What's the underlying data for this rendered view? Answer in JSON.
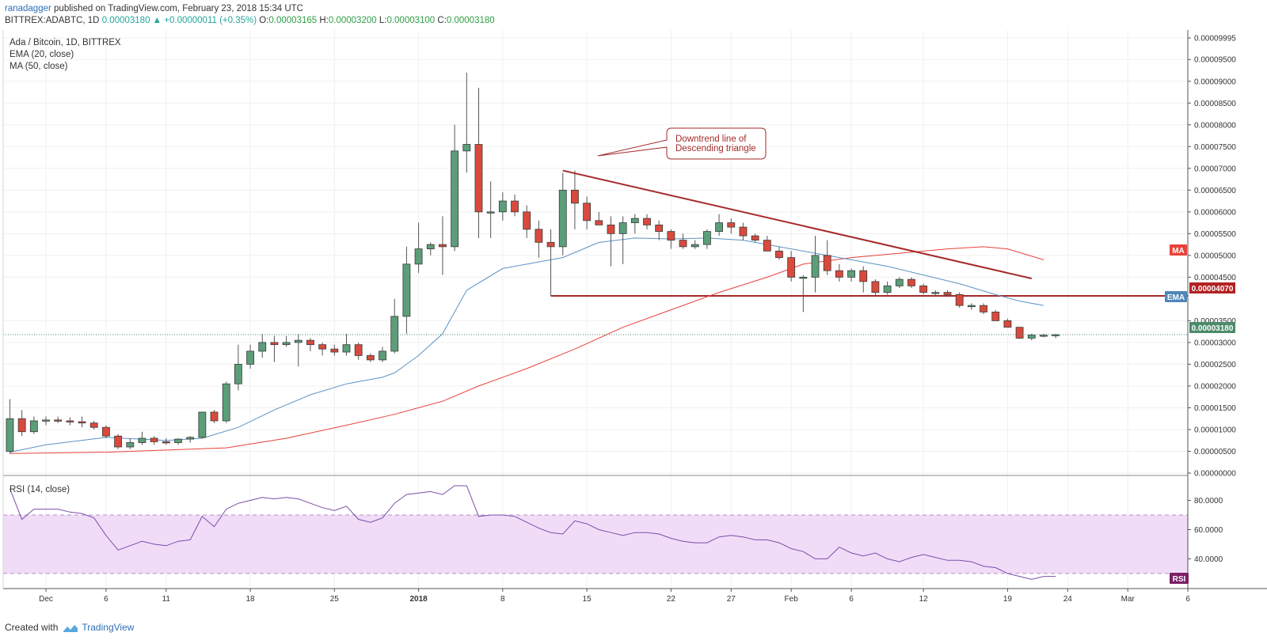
{
  "header": {
    "user": "ranadagger",
    "published": "published on TradingView.com, February 23, 2018 15:34 UTC",
    "symbol": "BITTREX:ADABTC, 1D",
    "price": "0.00003180",
    "change": "+0.00000011 (+0.35%)",
    "o_label": "O:",
    "o_value": "0.00003165",
    "h_label": "H:",
    "h_value": "0.00003200",
    "l_label": "L:",
    "l_value": "0.00003100",
    "c_label": "C:",
    "c_value": "0.00003180"
  },
  "legend": {
    "title": "Ada / Bitcoin, 1D, BITTREX",
    "ema": "EMA (20, close)",
    "ma": "MA (50, close)",
    "rsi": "RSI (14, close)"
  },
  "annotation": {
    "line1": "Downtrend line of",
    "line2": "Descending triangle"
  },
  "price_labels": {
    "ma": "MA",
    "ema": "EMA",
    "support": "0.00004070",
    "last": "0.00003180",
    "rsi": "RSI"
  },
  "footer": {
    "created_with": "Created with",
    "brand": "TradingView"
  },
  "colors": {
    "up": "#5b9e7a",
    "down": "#d94a3d",
    "ema": "#5b93c7",
    "ma": "#e8423a",
    "trendline": "#a52a2a",
    "rsi": "#7b4ea7",
    "rsi_band": "#f1dcf8",
    "last_price": "#4c8b6b"
  },
  "chart_data": {
    "type": "candlestick",
    "title": "Ada / Bitcoin, 1D, BITTREX",
    "y_ticks": [
      "0.00000000",
      "0.00000500",
      "0.00001000",
      "0.00001500",
      "0.00002000",
      "0.00002500",
      "0.00003000",
      "0.00003500",
      "0.00004500",
      "0.00005000",
      "0.00005500",
      "0.00006000",
      "0.00006500",
      "0.00007000",
      "0.00007500",
      "0.00008000",
      "0.00008500",
      "0.00009000",
      "0.00009500",
      "0.00009995"
    ],
    "ylim": [
      0,
      9.995e-05
    ],
    "x_ticks": [
      "Dec",
      "6",
      "11",
      "18",
      "25",
      "2018",
      "8",
      "15",
      "22",
      "27",
      "Feb",
      "6",
      "12",
      "19",
      "24",
      "Mar",
      "6"
    ],
    "x_tick_days": [
      0,
      5,
      10,
      17,
      24,
      31,
      38,
      45,
      52,
      57,
      62,
      67,
      73,
      80,
      85,
      90,
      95
    ],
    "day0": "2017-12-01",
    "candles": [
      {
        "d": -3,
        "o": 5e-06,
        "h": 1.7e-05,
        "l": 4.5e-06,
        "c": 1.25e-05
      },
      {
        "d": -2,
        "o": 1.25e-05,
        "h": 1.45e-05,
        "l": 8.5e-06,
        "c": 9.5e-06
      },
      {
        "d": -1,
        "o": 9.5e-06,
        "h": 1.3e-05,
        "l": 9e-06,
        "c": 1.2e-05
      },
      {
        "d": 0,
        "o": 1.2e-05,
        "h": 1.3e-05,
        "l": 1.1e-05,
        "c": 1.22e-05
      },
      {
        "d": 1,
        "o": 1.22e-05,
        "h": 1.3e-05,
        "l": 1.15e-05,
        "c": 1.2e-05
      },
      {
        "d": 2,
        "o": 1.2e-05,
        "h": 1.28e-05,
        "l": 1.1e-05,
        "c": 1.18e-05
      },
      {
        "d": 3,
        "o": 1.18e-05,
        "h": 1.3e-05,
        "l": 1.05e-05,
        "c": 1.15e-05
      },
      {
        "d": 4,
        "o": 1.15e-05,
        "h": 1.2e-05,
        "l": 1e-05,
        "c": 1.05e-05
      },
      {
        "d": 5,
        "o": 1.05e-05,
        "h": 1.1e-05,
        "l": 8e-06,
        "c": 8.5e-06
      },
      {
        "d": 6,
        "o": 8.5e-06,
        "h": 9e-06,
        "l": 5.5e-06,
        "c": 6e-06
      },
      {
        "d": 7,
        "o": 6e-06,
        "h": 8e-06,
        "l": 5.5e-06,
        "c": 7e-06
      },
      {
        "d": 8,
        "o": 7e-06,
        "h": 9.5e-06,
        "l": 6.5e-06,
        "c": 8e-06
      },
      {
        "d": 9,
        "o": 8e-06,
        "h": 8.5e-06,
        "l": 6.5e-06,
        "c": 7.2e-06
      },
      {
        "d": 10,
        "o": 7.2e-06,
        "h": 8e-06,
        "l": 6.5e-06,
        "c": 7e-06
      },
      {
        "d": 11,
        "o": 7e-06,
        "h": 8e-06,
        "l": 6.5e-06,
        "c": 7.8e-06
      },
      {
        "d": 12,
        "o": 7.8e-06,
        "h": 8.5e-06,
        "l": 7e-06,
        "c": 8.2e-06
      },
      {
        "d": 13,
        "o": 8.2e-06,
        "h": 1.4e-05,
        "l": 8e-06,
        "c": 1.4e-05
      },
      {
        "d": 14,
        "o": 1.4e-05,
        "h": 1.45e-05,
        "l": 1.15e-05,
        "c": 1.2e-05
      },
      {
        "d": 15,
        "o": 1.2e-05,
        "h": 2.1e-05,
        "l": 1.15e-05,
        "c": 2.05e-05
      },
      {
        "d": 16,
        "o": 2.05e-05,
        "h": 2.95e-05,
        "l": 1.9e-05,
        "c": 2.5e-05
      },
      {
        "d": 17,
        "o": 2.5e-05,
        "h": 2.95e-05,
        "l": 2.4e-05,
        "c": 2.8e-05
      },
      {
        "d": 18,
        "o": 2.8e-05,
        "h": 3.2e-05,
        "l": 2.65e-05,
        "c": 3e-05
      },
      {
        "d": 19,
        "o": 3e-05,
        "h": 3.15e-05,
        "l": 2.55e-05,
        "c": 2.95e-05
      },
      {
        "d": 20,
        "o": 2.95e-05,
        "h": 3.15e-05,
        "l": 2.9e-05,
        "c": 3e-05
      },
      {
        "d": 21,
        "o": 3e-05,
        "h": 3.2e-05,
        "l": 2.45e-05,
        "c": 3.05e-05
      },
      {
        "d": 22,
        "o": 3.05e-05,
        "h": 3.1e-05,
        "l": 2.8e-05,
        "c": 2.95e-05
      },
      {
        "d": 23,
        "o": 2.95e-05,
        "h": 3e-05,
        "l": 2.7e-05,
        "c": 2.85e-05
      },
      {
        "d": 24,
        "o": 2.85e-05,
        "h": 2.95e-05,
        "l": 2.7e-05,
        "c": 2.78e-05
      },
      {
        "d": 25,
        "o": 2.78e-05,
        "h": 3.2e-05,
        "l": 2.7e-05,
        "c": 2.95e-05
      },
      {
        "d": 26,
        "o": 2.95e-05,
        "h": 3e-05,
        "l": 2.6e-05,
        "c": 2.7e-05
      },
      {
        "d": 27,
        "o": 2.7e-05,
        "h": 2.75e-05,
        "l": 2.55e-05,
        "c": 2.6e-05
      },
      {
        "d": 28,
        "o": 2.6e-05,
        "h": 2.9e-05,
        "l": 2.55e-05,
        "c": 2.8e-05
      },
      {
        "d": 29,
        "o": 2.8e-05,
        "h": 4e-05,
        "l": 2.75e-05,
        "c": 3.6e-05
      },
      {
        "d": 30,
        "o": 3.6e-05,
        "h": 5.2e-05,
        "l": 3.2e-05,
        "c": 4.8e-05
      },
      {
        "d": 31,
        "o": 4.8e-05,
        "h": 5.75e-05,
        "l": 4.6e-05,
        "c": 5.15e-05
      },
      {
        "d": 32,
        "o": 5.15e-05,
        "h": 5.3e-05,
        "l": 5e-05,
        "c": 5.25e-05
      },
      {
        "d": 33,
        "o": 5.25e-05,
        "h": 5.9e-05,
        "l": 4.55e-05,
        "c": 5.2e-05
      },
      {
        "d": 34,
        "o": 5.2e-05,
        "h": 8e-05,
        "l": 5.1e-05,
        "c": 7.4e-05
      },
      {
        "d": 35,
        "o": 7.4e-05,
        "h": 9.2e-05,
        "l": 6.9e-05,
        "c": 7.55e-05
      },
      {
        "d": 36,
        "o": 7.55e-05,
        "h": 8.85e-05,
        "l": 5.4e-05,
        "c": 6e-05
      },
      {
        "d": 37,
        "o": 6e-05,
        "h": 6.7e-05,
        "l": 5.4e-05,
        "c": 6e-05
      },
      {
        "d": 38,
        "o": 6e-05,
        "h": 6.45e-05,
        "l": 5.8e-05,
        "c": 6.25e-05
      },
      {
        "d": 39,
        "o": 6.25e-05,
        "h": 6.4e-05,
        "l": 5.9e-05,
        "c": 6e-05
      },
      {
        "d": 40,
        "o": 6e-05,
        "h": 6.15e-05,
        "l": 5.4e-05,
        "c": 5.6e-05
      },
      {
        "d": 41,
        "o": 5.6e-05,
        "h": 5.8e-05,
        "l": 4.95e-05,
        "c": 5.3e-05
      },
      {
        "d": 42,
        "o": 5.3e-05,
        "h": 5.6e-05,
        "l": 4.07e-05,
        "c": 5.2e-05
      },
      {
        "d": 43,
        "o": 5.2e-05,
        "h": 6.9e-05,
        "l": 5e-05,
        "c": 6.5e-05
      },
      {
        "d": 44,
        "o": 6.5e-05,
        "h": 6.95e-05,
        "l": 5.6e-05,
        "c": 6.2e-05
      },
      {
        "d": 45,
        "o": 6.2e-05,
        "h": 6.35e-05,
        "l": 5.6e-05,
        "c": 5.8e-05
      },
      {
        "d": 46,
        "o": 5.8e-05,
        "h": 6e-05,
        "l": 5.7e-05,
        "c": 5.7e-05
      },
      {
        "d": 47,
        "o": 5.7e-05,
        "h": 5.9e-05,
        "l": 4.75e-05,
        "c": 5.5e-05
      },
      {
        "d": 48,
        "o": 5.5e-05,
        "h": 5.9e-05,
        "l": 4.8e-05,
        "c": 5.75e-05
      },
      {
        "d": 49,
        "o": 5.75e-05,
        "h": 5.95e-05,
        "l": 5.5e-05,
        "c": 5.85e-05
      },
      {
        "d": 50,
        "o": 5.85e-05,
        "h": 5.95e-05,
        "l": 5.6e-05,
        "c": 5.7e-05
      },
      {
        "d": 51,
        "o": 5.7e-05,
        "h": 5.8e-05,
        "l": 5.35e-05,
        "c": 5.55e-05
      },
      {
        "d": 52,
        "o": 5.55e-05,
        "h": 5.6e-05,
        "l": 5.15e-05,
        "c": 5.35e-05
      },
      {
        "d": 53,
        "o": 5.35e-05,
        "h": 5.5e-05,
        "l": 5.15e-05,
        "c": 5.2e-05
      },
      {
        "d": 54,
        "o": 5.2e-05,
        "h": 5.35e-05,
        "l": 5.15e-05,
        "c": 5.25e-05
      },
      {
        "d": 55,
        "o": 5.25e-05,
        "h": 5.6e-05,
        "l": 5.15e-05,
        "c": 5.55e-05
      },
      {
        "d": 56,
        "o": 5.55e-05,
        "h": 5.95e-05,
        "l": 5.45e-05,
        "c": 5.75e-05
      },
      {
        "d": 57,
        "o": 5.75e-05,
        "h": 5.85e-05,
        "l": 5.5e-05,
        "c": 5.65e-05
      },
      {
        "d": 58,
        "o": 5.65e-05,
        "h": 5.75e-05,
        "l": 5.35e-05,
        "c": 5.45e-05
      },
      {
        "d": 59,
        "o": 5.45e-05,
        "h": 5.5e-05,
        "l": 5.3e-05,
        "c": 5.35e-05
      },
      {
        "d": 60,
        "o": 5.35e-05,
        "h": 5.45e-05,
        "l": 5.1e-05,
        "c": 5.1e-05
      },
      {
        "d": 61,
        "o": 5.1e-05,
        "h": 5.2e-05,
        "l": 4.9e-05,
        "c": 4.95e-05
      },
      {
        "d": 62,
        "o": 4.95e-05,
        "h": 5.1e-05,
        "l": 4.4e-05,
        "c": 4.5e-05
      },
      {
        "d": 63,
        "o": 4.5e-05,
        "h": 4.55e-05,
        "l": 3.7e-05,
        "c": 4.5e-05
      },
      {
        "d": 64,
        "o": 4.5e-05,
        "h": 5.45e-05,
        "l": 4.15e-05,
        "c": 5e-05
      },
      {
        "d": 65,
        "o": 5e-05,
        "h": 5.35e-05,
        "l": 4.55e-05,
        "c": 4.65e-05
      },
      {
        "d": 66,
        "o": 4.65e-05,
        "h": 4.8e-05,
        "l": 4.4e-05,
        "c": 4.5e-05
      },
      {
        "d": 67,
        "o": 4.5e-05,
        "h": 4.7e-05,
        "l": 4.4e-05,
        "c": 4.65e-05
      },
      {
        "d": 68,
        "o": 4.65e-05,
        "h": 4.75e-05,
        "l": 4.15e-05,
        "c": 4.4e-05
      },
      {
        "d": 69,
        "o": 4.4e-05,
        "h": 4.45e-05,
        "l": 4.05e-05,
        "c": 4.15e-05
      },
      {
        "d": 70,
        "o": 4.15e-05,
        "h": 4.4e-05,
        "l": 4.1e-05,
        "c": 4.3e-05
      },
      {
        "d": 71,
        "o": 4.3e-05,
        "h": 4.5e-05,
        "l": 4.25e-05,
        "c": 4.45e-05
      },
      {
        "d": 72,
        "o": 4.45e-05,
        "h": 4.5e-05,
        "l": 4.25e-05,
        "c": 4.3e-05
      },
      {
        "d": 73,
        "o": 4.3e-05,
        "h": 4.35e-05,
        "l": 4.1e-05,
        "c": 4.15e-05
      },
      {
        "d": 74,
        "o": 4.15e-05,
        "h": 4.2e-05,
        "l": 4.05e-05,
        "c": 4.15e-05
      },
      {
        "d": 75,
        "o": 4.15e-05,
        "h": 4.2e-05,
        "l": 4.05e-05,
        "c": 4.1e-05
      },
      {
        "d": 76,
        "o": 4.1e-05,
        "h": 4.15e-05,
        "l": 3.8e-05,
        "c": 3.85e-05
      },
      {
        "d": 77,
        "o": 3.85e-05,
        "h": 3.9e-05,
        "l": 3.75e-05,
        "c": 3.85e-05
      },
      {
        "d": 78,
        "o": 3.85e-05,
        "h": 3.9e-05,
        "l": 3.65e-05,
        "c": 3.7e-05
      },
      {
        "d": 79,
        "o": 3.7e-05,
        "h": 3.75e-05,
        "l": 3.5e-05,
        "c": 3.5e-05
      },
      {
        "d": 80,
        "o": 3.5e-05,
        "h": 3.55e-05,
        "l": 3.35e-05,
        "c": 3.35e-05
      },
      {
        "d": 81,
        "o": 3.35e-05,
        "h": 3.35e-05,
        "l": 3.08e-05,
        "c": 3.1e-05
      },
      {
        "d": 82,
        "o": 3.1e-05,
        "h": 3.2e-05,
        "l": 3.05e-05,
        "c": 3.17e-05
      },
      {
        "d": 83,
        "o": 3.16e-05,
        "h": 3.2e-05,
        "l": 3.12e-05,
        "c": 3.169e-05
      },
      {
        "d": 84,
        "o": 3.165e-05,
        "h": 3.2e-05,
        "l": 3.1e-05,
        "c": 3.18e-05
      }
    ],
    "ema20": [
      [
        -3,
        4.8e-06
      ],
      [
        0,
        6.5e-06
      ],
      [
        5,
        8.2e-06
      ],
      [
        10,
        7.5e-06
      ],
      [
        13,
        8e-06
      ],
      [
        16,
        1.05e-05
      ],
      [
        19,
        1.45e-05
      ],
      [
        22,
        1.8e-05
      ],
      [
        25,
        2.05e-05
      ],
      [
        28,
        2.2e-05
      ],
      [
        29,
        2.3e-05
      ],
      [
        31,
        2.7e-05
      ],
      [
        33,
        3.2e-05
      ],
      [
        35,
        4.2e-05
      ],
      [
        38,
        4.7e-05
      ],
      [
        41,
        4.85e-05
      ],
      [
        43,
        4.95e-05
      ],
      [
        46,
        5.3e-05
      ],
      [
        49,
        5.4e-05
      ],
      [
        52,
        5.38e-05
      ],
      [
        55,
        5.4e-05
      ],
      [
        58,
        5.35e-05
      ],
      [
        61,
        5.2e-05
      ],
      [
        64,
        5.05e-05
      ],
      [
        67,
        4.9e-05
      ],
      [
        70,
        4.75e-05
      ],
      [
        73,
        4.55e-05
      ],
      [
        76,
        4.35e-05
      ],
      [
        79,
        4.1e-05
      ],
      [
        81,
        3.95e-05
      ],
      [
        83,
        3.85e-05
      ]
    ],
    "ma50": [
      [
        -3,
        4.5e-06
      ],
      [
        5,
        4.8e-06
      ],
      [
        15,
        5.8e-06
      ],
      [
        20,
        8e-06
      ],
      [
        25,
        1.1e-05
      ],
      [
        29,
        1.35e-05
      ],
      [
        33,
        1.65e-05
      ],
      [
        36,
        2e-05
      ],
      [
        40,
        2.4e-05
      ],
      [
        44,
        2.85e-05
      ],
      [
        48,
        3.35e-05
      ],
      [
        52,
        3.75e-05
      ],
      [
        56,
        4.15e-05
      ],
      [
        60,
        4.5e-05
      ],
      [
        63,
        4.8e-05
      ],
      [
        67,
        4.95e-05
      ],
      [
        71,
        5.05e-05
      ],
      [
        75,
        5.15e-05
      ],
      [
        78,
        5.2e-05
      ],
      [
        80,
        5.15e-05
      ],
      [
        83,
        4.9e-05
      ]
    ],
    "trendline": [
      [
        43,
        6.95e-05
      ],
      [
        82,
        4.47e-05
      ]
    ],
    "support": {
      "from": 42,
      "to": 97,
      "value": 4.07e-05
    },
    "rsi": {
      "ylim": [
        24,
        90
      ],
      "y_ticks": [
        "80.0000",
        "60.0000",
        "40.0000"
      ],
      "band": [
        30,
        70
      ],
      "values": [
        [
          -3,
          88
        ],
        [
          -2,
          67
        ],
        [
          -1,
          74
        ],
        [
          0,
          74
        ],
        [
          1,
          74
        ],
        [
          2,
          72
        ],
        [
          3,
          71
        ],
        [
          4,
          68
        ],
        [
          5,
          56
        ],
        [
          6,
          46
        ],
        [
          7,
          49
        ],
        [
          8,
          52
        ],
        [
          9,
          50
        ],
        [
          10,
          49
        ],
        [
          11,
          52
        ],
        [
          12,
          53
        ],
        [
          13,
          69
        ],
        [
          14,
          62
        ],
        [
          15,
          74
        ],
        [
          16,
          78
        ],
        [
          17,
          80
        ],
        [
          18,
          82
        ],
        [
          19,
          81
        ],
        [
          20,
          82
        ],
        [
          21,
          81
        ],
        [
          22,
          78
        ],
        [
          23,
          75
        ],
        [
          24,
          73
        ],
        [
          25,
          76
        ],
        [
          26,
          67
        ],
        [
          27,
          65
        ],
        [
          28,
          68
        ],
        [
          29,
          78
        ],
        [
          30,
          84
        ],
        [
          31,
          85
        ],
        [
          32,
          86
        ],
        [
          33,
          84
        ],
        [
          34,
          90
        ],
        [
          35,
          90
        ],
        [
          36,
          69
        ],
        [
          37,
          70
        ],
        [
          38,
          70
        ],
        [
          39,
          69
        ],
        [
          40,
          65
        ],
        [
          41,
          61
        ],
        [
          42,
          58
        ],
        [
          43,
          57
        ],
        [
          44,
          66
        ],
        [
          45,
          64
        ],
        [
          46,
          60
        ],
        [
          47,
          58
        ],
        [
          48,
          56
        ],
        [
          49,
          58
        ],
        [
          50,
          58
        ],
        [
          51,
          57
        ],
        [
          52,
          54
        ],
        [
          53,
          52
        ],
        [
          54,
          51
        ],
        [
          55,
          51
        ],
        [
          56,
          55
        ],
        [
          57,
          56
        ],
        [
          58,
          55
        ],
        [
          59,
          53
        ],
        [
          60,
          53
        ],
        [
          61,
          51
        ],
        [
          62,
          47
        ],
        [
          63,
          45
        ],
        [
          64,
          40
        ],
        [
          65,
          40
        ],
        [
          66,
          48
        ],
        [
          67,
          44
        ],
        [
          68,
          42
        ],
        [
          69,
          44
        ],
        [
          70,
          40
        ],
        [
          71,
          38
        ],
        [
          72,
          41
        ],
        [
          73,
          43
        ],
        [
          74,
          41
        ],
        [
          75,
          39
        ],
        [
          76,
          39
        ],
        [
          77,
          38
        ],
        [
          78,
          35
        ],
        [
          79,
          34
        ],
        [
          80,
          30
        ],
        [
          81,
          28
        ],
        [
          82,
          26
        ],
        [
          83,
          28
        ],
        [
          84,
          28
        ]
      ]
    }
  }
}
